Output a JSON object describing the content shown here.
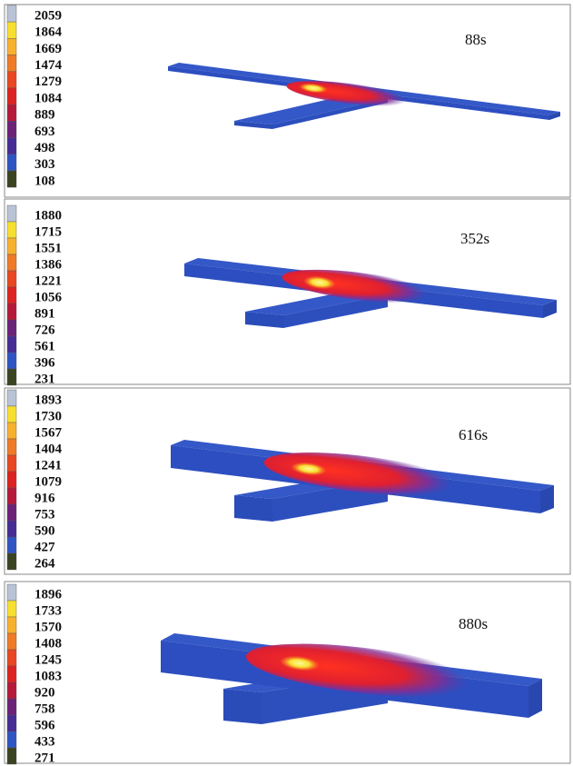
{
  "panels": [
    {
      "time": "88s",
      "legend": [
        "2059",
        "1864",
        "1669",
        "1474",
        "1279",
        "1084",
        "889",
        "693",
        "498",
        "303",
        "108"
      ]
    },
    {
      "time": "352s",
      "legend": [
        "1880",
        "1715",
        "1551",
        "1386",
        "1221",
        "1056",
        "891",
        "726",
        "561",
        "396",
        "231"
      ]
    },
    {
      "time": "616s",
      "legend": [
        "1893",
        "1730",
        "1567",
        "1404",
        "1241",
        "1079",
        "916",
        "753",
        "590",
        "427",
        "264"
      ]
    },
    {
      "time": "880s",
      "legend": [
        "1896",
        "1733",
        "1570",
        "1408",
        "1245",
        "1083",
        "920",
        "758",
        "596",
        "433",
        "271"
      ]
    }
  ]
}
